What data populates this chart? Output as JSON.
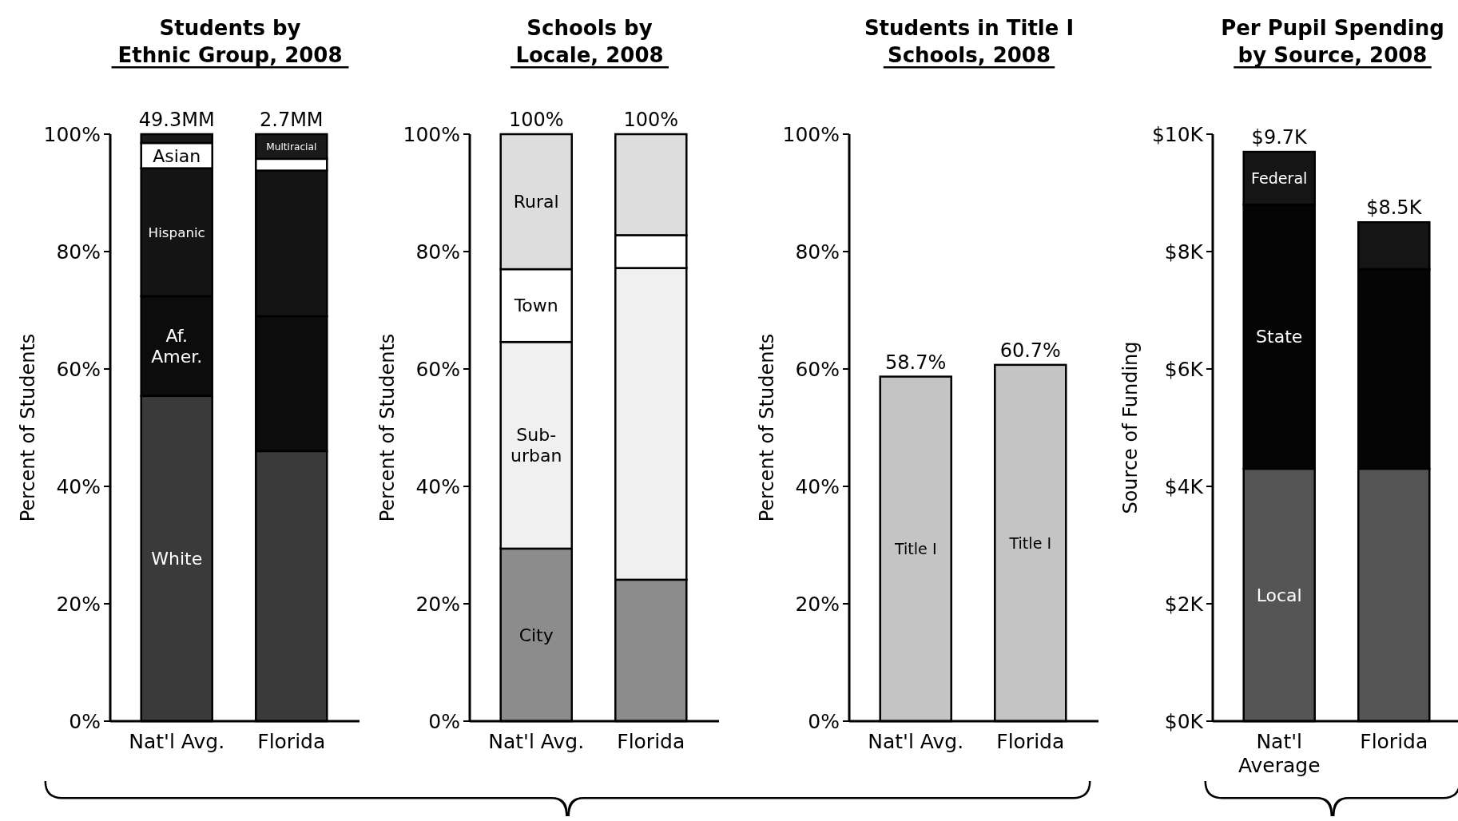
{
  "chart_data": [
    {
      "type": "bar",
      "stacked": true,
      "title": "Students by\nEthnic Group, 2008",
      "ylabel": "Percent of Students",
      "categories": [
        "Nat'l Avg.",
        "Florida"
      ],
      "annotations": [
        {
          "text": "49.3MM",
          "x": "Nat'l Avg.",
          "y": 100
        },
        {
          "text": "2.7MM",
          "x": "Florida",
          "y": 100
        }
      ],
      "series": [
        {
          "name": "White",
          "color": "#3a3a3a",
          "values": [
            55.4,
            46.0
          ]
        },
        {
          "name": "Af.\nAmer.",
          "color": "#0c0c0c",
          "values": [
            17.0,
            23.0
          ]
        },
        {
          "name": "Hispanic",
          "color": "#141414",
          "values": [
            21.8,
            24.8
          ]
        },
        {
          "name": "Asian",
          "color": "#ffffff",
          "values": [
            4.3,
            2.0
          ]
        },
        {
          "name": "Multiracial",
          "color": "#1a1a1a",
          "values": [
            1.5,
            4.2
          ]
        }
      ],
      "ylim": [
        0,
        100
      ],
      "yticks": [
        {
          "value": 0,
          "label": "0%"
        },
        {
          "value": 20,
          "label": "20%"
        },
        {
          "value": 40,
          "label": "40%"
        },
        {
          "value": 60,
          "label": "60%"
        },
        {
          "value": 80,
          "label": "80%"
        },
        {
          "value": 100,
          "label": "100%"
        }
      ]
    },
    {
      "type": "bar",
      "stacked": true,
      "title": "Schools by\nLocale, 2008",
      "ylabel": "Percent of Students",
      "categories": [
        "Nat'l Avg.",
        "Florida"
      ],
      "totals": [
        "100%",
        "100%"
      ],
      "series": [
        {
          "name": "City",
          "color": "#8c8c8c",
          "values": [
            29.4,
            24.1
          ]
        },
        {
          "name": "Sub-\nurban",
          "color": "#f0f0f0",
          "values": [
            35.2,
            53.1
          ]
        },
        {
          "name": "Town",
          "color": "#ffffff",
          "values": [
            12.4,
            5.6
          ]
        },
        {
          "name": "Rural",
          "color": "#dddddd",
          "values": [
            23.0,
            17.2
          ]
        }
      ],
      "ylim": [
        0,
        100
      ],
      "yticks": [
        {
          "value": 0,
          "label": "0%"
        },
        {
          "value": 20,
          "label": "20%"
        },
        {
          "value": 40,
          "label": "40%"
        },
        {
          "value": 60,
          "label": "60%"
        },
        {
          "value": 80,
          "label": "80%"
        },
        {
          "value": 100,
          "label": "100%"
        }
      ]
    },
    {
      "type": "bar",
      "title": "Students in Title I\nSchools, 2008",
      "ylabel": "Percent of Students",
      "categories": [
        "Nat'l Avg.",
        "Florida"
      ],
      "series": [
        {
          "name": "Title I",
          "color": "#c4c4c4",
          "values": [
            58.7,
            60.7
          ],
          "value_labels": [
            "58.7%",
            "60.7%"
          ]
        }
      ],
      "ylim": [
        0,
        100
      ],
      "yticks": [
        {
          "value": 0,
          "label": "0%"
        },
        {
          "value": 20,
          "label": "20%"
        },
        {
          "value": 40,
          "label": "40%"
        },
        {
          "value": 60,
          "label": "60%"
        },
        {
          "value": 80,
          "label": "80%"
        },
        {
          "value": 100,
          "label": "100%"
        }
      ]
    },
    {
      "type": "bar",
      "stacked": true,
      "title": "Per Pupil Spending\nby Source, 2008",
      "ylabel": "Source of Funding",
      "categories": [
        "Nat'l\nAverage",
        "Florida"
      ],
      "totals": [
        "$9.7K",
        "$8.5K"
      ],
      "series": [
        {
          "name": "Local",
          "color": "#555555",
          "values": [
            4.3,
            4.3
          ]
        },
        {
          "name": "State",
          "color": "#050505",
          "values": [
            4.5,
            3.4
          ]
        },
        {
          "name": "Federal",
          "color": "#151515",
          "values": [
            0.9,
            0.8
          ]
        }
      ],
      "ylim": [
        0,
        10
      ],
      "yticks": [
        {
          "value": 0,
          "label": "$0K"
        },
        {
          "value": 2,
          "label": "$2K"
        },
        {
          "value": 4,
          "label": "$4K"
        },
        {
          "value": 6,
          "label": "$6K"
        },
        {
          "value": 8,
          "label": "$8K"
        },
        {
          "value": 10,
          "label": "$10K"
        }
      ]
    }
  ]
}
